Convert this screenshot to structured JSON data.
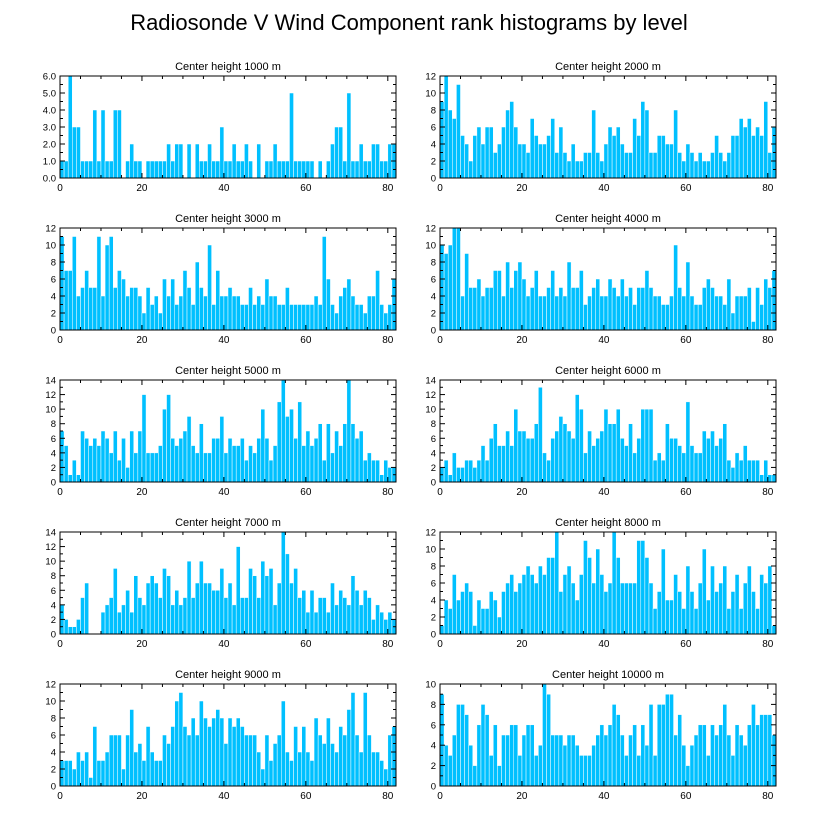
{
  "figure": {
    "title": "Radiosonde V Wind Component rank histograms by level"
  },
  "style": {
    "bar_color": "#00c0ff",
    "bar_edge": "#ffffff",
    "axis_color": "#000000"
  },
  "chart_data": [
    {
      "type": "bar",
      "title": "Center height 1000 m",
      "xlim": [
        0,
        82
      ],
      "ylim": [
        0,
        6
      ],
      "xticks": [
        0,
        20,
        40,
        60,
        80
      ],
      "yticks": [
        0,
        1,
        2,
        3,
        4,
        5,
        6
      ],
      "ytick_labels": [
        "0.0",
        "1.0",
        "2.0",
        "3.0",
        "4.0",
        "5.0",
        "6.0"
      ],
      "values": [
        1,
        1,
        6,
        3,
        3,
        1,
        1,
        1,
        4,
        1,
        4,
        1,
        1,
        4,
        4,
        0,
        1,
        2,
        1,
        1,
        0,
        1,
        1,
        1,
        1,
        1,
        2,
        1,
        2,
        2,
        0,
        2,
        0,
        2,
        1,
        1,
        2,
        1,
        1,
        3,
        1,
        1,
        2,
        1,
        1,
        2,
        1,
        0,
        2,
        0,
        1,
        1,
        2,
        1,
        1,
        1,
        5,
        1,
        1,
        1,
        1,
        1,
        0,
        1,
        0,
        1,
        2,
        3,
        3,
        1,
        5,
        1,
        1,
        2,
        1,
        1,
        2,
        2,
        1,
        1,
        2,
        2
      ]
    },
    {
      "type": "bar",
      "title": "Center height 2000 m",
      "xlim": [
        0,
        82
      ],
      "ylim": [
        0,
        12
      ],
      "xticks": [
        0,
        20,
        40,
        60,
        80
      ],
      "yticks": [
        0,
        2,
        4,
        6,
        8,
        10,
        12
      ],
      "ytick_labels": [
        "0",
        "2",
        "4",
        "6",
        "8",
        "10",
        "12"
      ],
      "values": [
        9,
        12,
        8,
        7,
        11,
        5,
        4,
        2,
        5,
        6,
        4,
        6,
        6,
        3,
        4,
        6,
        8,
        9,
        6,
        4,
        4,
        3,
        7,
        5,
        4,
        4,
        5,
        7,
        3,
        6,
        3,
        2,
        4,
        2,
        2,
        3,
        3,
        8,
        3,
        2,
        4,
        6,
        5,
        6,
        4,
        3,
        3,
        7,
        5,
        9,
        8,
        3,
        3,
        5,
        5,
        4,
        4,
        8,
        3,
        2,
        4,
        3,
        2,
        3,
        2,
        2,
        3,
        5,
        3,
        2,
        3,
        5,
        5,
        7,
        6,
        7,
        5,
        6,
        5,
        9,
        3,
        6
      ]
    },
    {
      "type": "bar",
      "title": "Center height 3000 m",
      "xlim": [
        0,
        82
      ],
      "ylim": [
        0,
        12
      ],
      "xticks": [
        0,
        20,
        40,
        60,
        80
      ],
      "yticks": [
        0,
        2,
        4,
        6,
        8,
        10,
        12
      ],
      "ytick_labels": [
        "0",
        "2",
        "4",
        "6",
        "8",
        "10",
        "12"
      ],
      "values": [
        11,
        7,
        7,
        11,
        4,
        5,
        7,
        5,
        5,
        11,
        4,
        10,
        11,
        5,
        7,
        6,
        4,
        5,
        5,
        4,
        2,
        5,
        3,
        4,
        2,
        6,
        4,
        6,
        3,
        4,
        7,
        5,
        3,
        8,
        5,
        4,
        10,
        3,
        7,
        4,
        4,
        5,
        4,
        4,
        3,
        3,
        5,
        3,
        4,
        3,
        6,
        4,
        4,
        3,
        3,
        5,
        3,
        3,
        3,
        3,
        3,
        3,
        4,
        3,
        11,
        6,
        3,
        2,
        4,
        5,
        6,
        4,
        3,
        3,
        2,
        4,
        4,
        7,
        3,
        2,
        3,
        6
      ]
    },
    {
      "type": "bar",
      "title": "Center height 4000 m",
      "xlim": [
        0,
        82
      ],
      "ylim": [
        0,
        12
      ],
      "xticks": [
        0,
        20,
        40,
        60,
        80
      ],
      "yticks": [
        0,
        2,
        4,
        6,
        8,
        10,
        12
      ],
      "ytick_labels": [
        "0",
        "2",
        "4",
        "6",
        "8",
        "10",
        "12"
      ],
      "values": [
        10,
        9,
        10,
        12,
        12,
        4,
        9,
        5,
        5,
        6,
        4,
        5,
        5,
        7,
        7,
        4,
        8,
        5,
        7,
        8,
        6,
        4,
        5,
        7,
        4,
        4,
        5,
        7,
        4,
        5,
        4,
        8,
        5,
        5,
        7,
        3,
        4,
        5,
        6,
        4,
        4,
        6,
        5,
        4,
        6,
        4,
        5,
        3,
        5,
        5,
        7,
        5,
        4,
        4,
        3,
        3,
        4,
        10,
        5,
        4,
        8,
        4,
        3,
        3,
        5,
        6,
        5,
        4,
        4,
        3,
        6,
        2,
        4,
        4,
        4,
        5,
        1,
        5,
        3,
        6,
        5,
        7
      ]
    },
    {
      "type": "bar",
      "title": "Center height 5000 m",
      "xlim": [
        0,
        82
      ],
      "ylim": [
        0,
        14
      ],
      "xticks": [
        0,
        20,
        40,
        60,
        80
      ],
      "yticks": [
        0,
        2,
        4,
        6,
        8,
        10,
        12,
        14
      ],
      "ytick_labels": [
        "0",
        "2",
        "4",
        "6",
        "8",
        "10",
        "12",
        "14"
      ],
      "values": [
        7,
        5,
        1,
        3,
        1,
        7,
        6,
        5,
        6,
        5,
        7,
        6,
        4,
        7,
        3,
        6,
        2,
        7,
        4,
        7,
        12,
        4,
        4,
        4,
        5,
        10,
        12,
        6,
        5,
        6,
        7,
        9,
        5,
        4,
        8,
        4,
        4,
        6,
        6,
        9,
        4,
        6,
        5,
        5,
        6,
        3,
        5,
        4,
        6,
        10,
        6,
        3,
        5,
        11,
        14,
        9,
        10,
        6,
        11,
        5,
        7,
        5,
        6,
        8,
        3,
        8,
        4,
        7,
        5,
        8,
        14,
        8,
        6,
        7,
        3,
        4,
        3,
        3,
        1,
        3,
        2,
        2
      ]
    },
    {
      "type": "bar",
      "title": "Center height 6000 m",
      "xlim": [
        0,
        82
      ],
      "ylim": [
        0,
        14
      ],
      "xticks": [
        0,
        20,
        40,
        60,
        80
      ],
      "yticks": [
        0,
        2,
        4,
        6,
        8,
        10,
        12,
        14
      ],
      "ytick_labels": [
        "0",
        "2",
        "4",
        "6",
        "8",
        "10",
        "12",
        "14"
      ],
      "values": [
        2,
        3,
        1,
        4,
        2,
        2,
        3,
        3,
        2,
        3,
        5,
        3,
        6,
        8,
        5,
        5,
        7,
        5,
        10,
        7,
        7,
        6,
        6,
        8,
        13,
        4,
        3,
        6,
        7,
        9,
        8,
        7,
        6,
        12,
        10,
        4,
        7,
        5,
        6,
        7,
        10,
        8,
        8,
        10,
        6,
        5,
        8,
        4,
        6,
        10,
        10,
        10,
        3,
        4,
        3,
        8,
        6,
        6,
        5,
        4,
        11,
        5,
        4,
        4,
        7,
        6,
        7,
        5,
        6,
        8,
        3,
        2,
        4,
        3,
        5,
        3,
        3,
        3,
        1,
        3,
        1,
        1
      ]
    },
    {
      "type": "bar",
      "title": "Center height 7000 m",
      "xlim": [
        0,
        82
      ],
      "ylim": [
        0,
        14
      ],
      "xticks": [
        0,
        20,
        40,
        60,
        80
      ],
      "yticks": [
        0,
        2,
        4,
        6,
        8,
        10,
        12,
        14
      ],
      "ytick_labels": [
        "0",
        "2",
        "4",
        "6",
        "8",
        "10",
        "12",
        "14"
      ],
      "values": [
        4,
        2,
        1,
        1,
        2,
        5,
        7,
        0,
        0,
        0,
        3,
        4,
        5,
        9,
        3,
        4,
        6,
        3,
        8,
        5,
        4,
        7,
        8,
        7,
        5,
        9,
        8,
        4,
        6,
        4,
        5,
        10,
        5,
        7,
        10,
        7,
        7,
        6,
        6,
        9,
        5,
        7,
        4,
        12,
        5,
        5,
        9,
        8,
        5,
        10,
        8,
        9,
        4,
        7,
        14,
        11,
        7,
        9,
        5,
        6,
        3,
        6,
        3,
        5,
        5,
        3,
        7,
        4,
        6,
        5,
        4,
        8,
        6,
        4,
        6,
        5,
        2,
        4,
        3,
        2,
        3,
        2
      ]
    },
    {
      "type": "bar",
      "title": "Center height 8000 m",
      "xlim": [
        0,
        82
      ],
      "ylim": [
        0,
        12
      ],
      "xticks": [
        0,
        20,
        40,
        60,
        80
      ],
      "yticks": [
        0,
        2,
        4,
        6,
        8,
        10,
        12
      ],
      "ytick_labels": [
        "0",
        "2",
        "4",
        "6",
        "8",
        "10",
        "12"
      ],
      "values": [
        1,
        4,
        3,
        7,
        4,
        5,
        6,
        5,
        1,
        4,
        3,
        3,
        5,
        4,
        2,
        5,
        6,
        7,
        5,
        6,
        7,
        8,
        7,
        6,
        8,
        7,
        9,
        9,
        12,
        5,
        7,
        8,
        6,
        4,
        7,
        11,
        9,
        6,
        10,
        7,
        5,
        6,
        12,
        9,
        6,
        6,
        6,
        6,
        11,
        11,
        9,
        6,
        3,
        5,
        10,
        4,
        4,
        7,
        5,
        3,
        8,
        5,
        3,
        6,
        10,
        4,
        8,
        5,
        6,
        8,
        3,
        5,
        7,
        3,
        6,
        8,
        5,
        3,
        7,
        6,
        8,
        1
      ]
    },
    {
      "type": "bar",
      "title": "Center height 9000 m",
      "xlim": [
        0,
        82
      ],
      "ylim": [
        0,
        12
      ],
      "xticks": [
        0,
        20,
        40,
        60,
        80
      ],
      "yticks": [
        0,
        2,
        4,
        6,
        8,
        10,
        12
      ],
      "ytick_labels": [
        "0",
        "2",
        "4",
        "6",
        "8",
        "10",
        "12"
      ],
      "values": [
        3,
        3,
        3,
        2,
        4,
        3,
        4,
        1,
        7,
        3,
        3,
        4,
        6,
        6,
        6,
        2,
        6,
        9,
        4,
        5,
        3,
        7,
        4,
        3,
        3,
        6,
        5,
        7,
        10,
        11,
        7,
        6,
        8,
        6,
        10,
        8,
        7,
        8,
        9,
        8,
        5,
        8,
        7,
        8,
        7,
        6,
        6,
        6,
        4,
        2,
        6,
        3,
        5,
        6,
        10,
        4,
        3,
        7,
        4,
        7,
        4,
        3,
        8,
        6,
        5,
        8,
        5,
        4,
        7,
        6,
        9,
        11,
        6,
        4,
        11,
        6,
        4,
        4,
        3,
        2,
        6,
        7
      ]
    },
    {
      "type": "bar",
      "title": "Center height 10000 m",
      "xlim": [
        0,
        82
      ],
      "ylim": [
        0,
        10
      ],
      "xticks": [
        0,
        20,
        40,
        60,
        80
      ],
      "yticks": [
        0,
        2,
        4,
        6,
        8,
        10
      ],
      "ytick_labels": [
        "0",
        "2",
        "4",
        "6",
        "8",
        "10"
      ],
      "values": [
        9,
        4,
        3,
        5,
        8,
        8,
        7,
        4,
        2,
        6,
        8,
        7,
        3,
        6,
        2,
        5,
        5,
        6,
        6,
        3,
        5,
        6,
        6,
        3,
        4,
        10,
        9,
        5,
        5,
        5,
        4,
        5,
        5,
        4,
        3,
        3,
        3,
        4,
        5,
        6,
        5,
        6,
        8,
        7,
        5,
        3,
        5,
        6,
        3,
        6,
        4,
        8,
        3,
        8,
        8,
        9,
        9,
        5,
        7,
        4,
        2,
        4,
        5,
        6,
        6,
        3,
        6,
        5,
        6,
        8,
        5,
        3,
        6,
        5,
        4,
        6,
        8,
        6,
        7,
        7,
        7,
        5
      ]
    }
  ]
}
